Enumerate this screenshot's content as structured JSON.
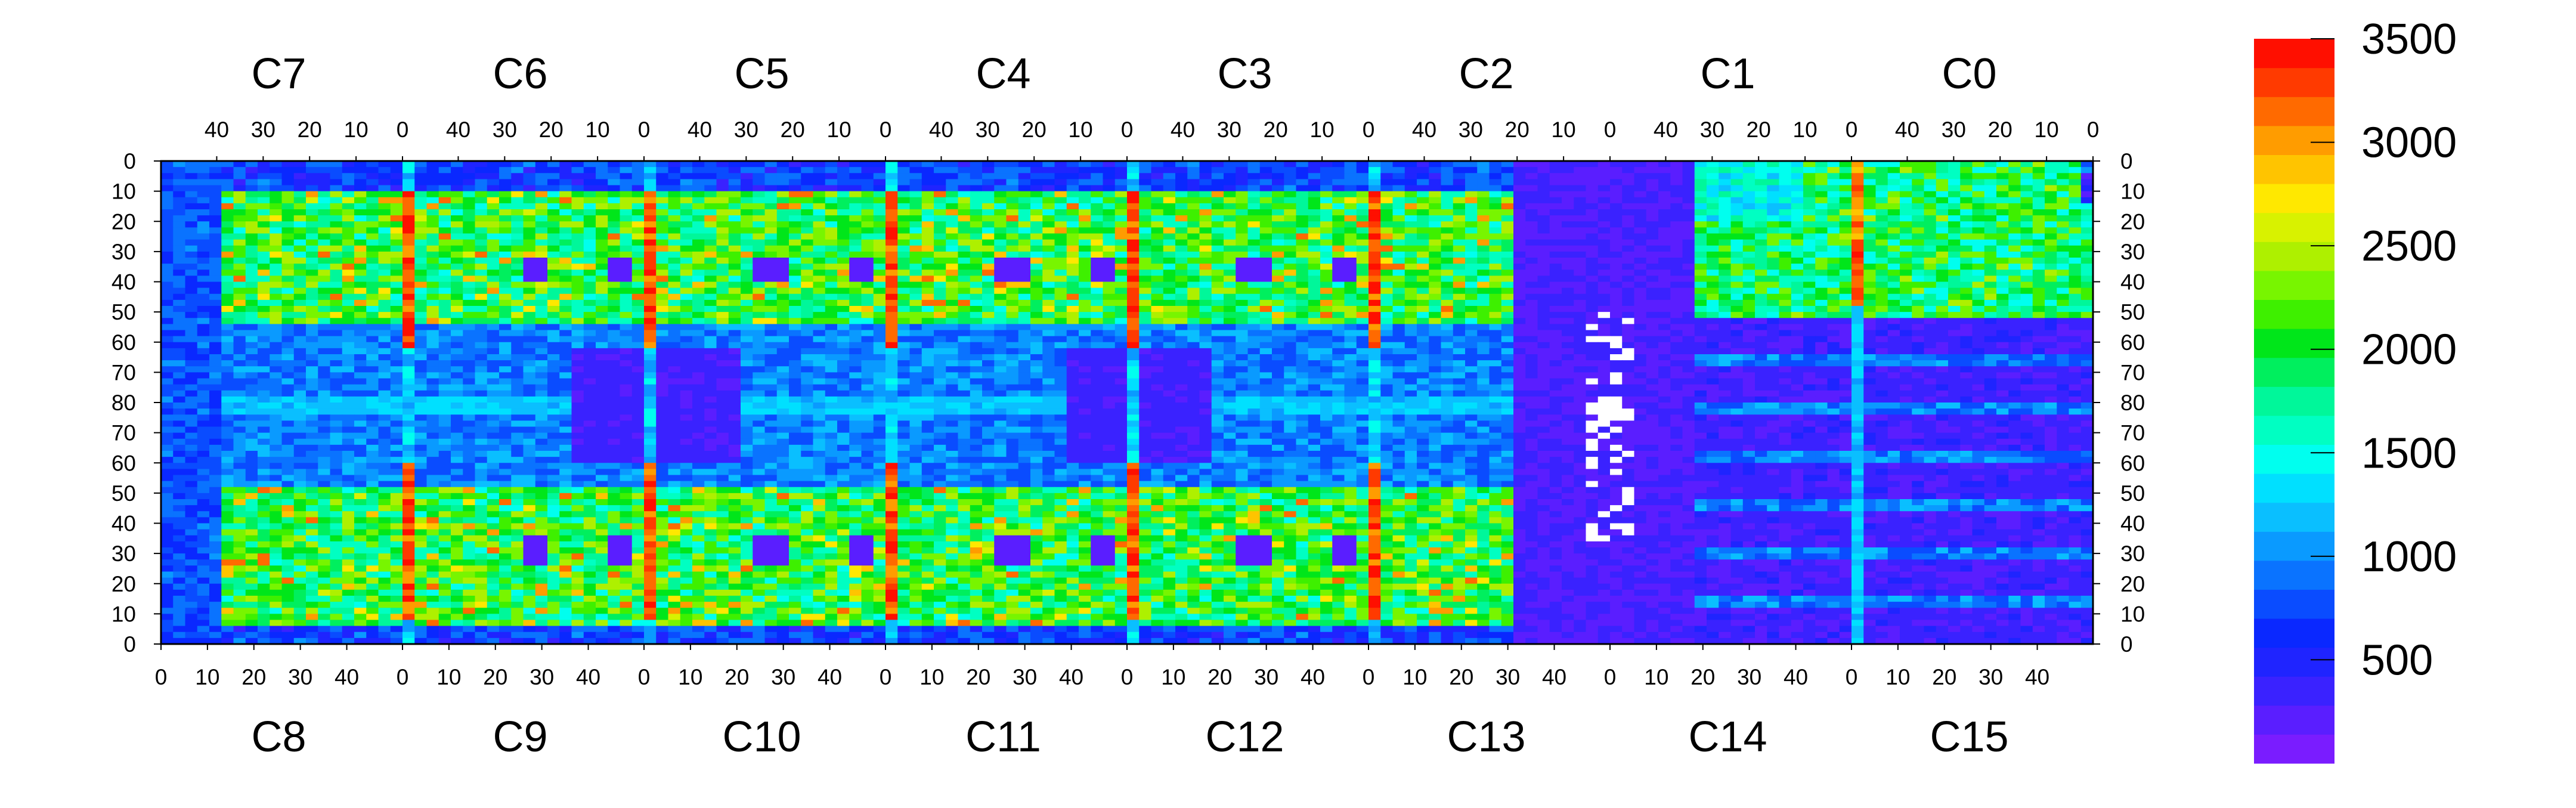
{
  "chart_data": {
    "type": "heatmap",
    "description_note": "",
    "top_chip_labels": [
      "C7",
      "C6",
      "C5",
      "C4",
      "C3",
      "C2",
      "C1",
      "C0"
    ],
    "bottom_chip_labels": [
      "C8",
      "C9",
      "C10",
      "C11",
      "C12",
      "C13",
      "C14",
      "C15"
    ],
    "top_axis_ticks": [
      "40",
      "30",
      "20",
      "10",
      "0"
    ],
    "bottom_axis_ticks": [
      "0",
      "10",
      "20",
      "30",
      "40"
    ],
    "left_axis_ticks": [
      "0",
      "10",
      "20",
      "30",
      "40",
      "50",
      "60",
      "70",
      "80",
      "70",
      "60",
      "50",
      "40",
      "30",
      "20",
      "10",
      "0"
    ],
    "right_axis_ticks": [
      "0",
      "10",
      "20",
      "30",
      "40",
      "50",
      "60",
      "70",
      "80",
      "70",
      "60",
      "50",
      "40",
      "30",
      "20",
      "10",
      "0"
    ],
    "chip_columns": 52,
    "rows_per_half": 80,
    "colorbar": {
      "min": 0,
      "max": 3500,
      "labels": [
        "3500",
        "3000",
        "2500",
        "2000",
        "1500",
        "1000",
        "500"
      ],
      "label_values": [
        3500,
        3000,
        2500,
        2000,
        1500,
        1000,
        500
      ],
      "colors": [
        "#7a1cff",
        "#5a1eff",
        "#3a22ff",
        "#1f24ff",
        "#0a28ff",
        "#0a4cff",
        "#0a73ff",
        "#0a9aff",
        "#0abfff",
        "#00e0ff",
        "#00ffef",
        "#00ffc2",
        "#00f79a",
        "#00ef5e",
        "#00e61a",
        "#3ef000",
        "#78f500",
        "#aef000",
        "#d8f200",
        "#ffe800",
        "#ffc400",
        "#ff9c00",
        "#ff6a00",
        "#ff3a00",
        "#ff0f00"
      ]
    },
    "colors": {
      "background_low": "#6a1cff",
      "typical_active": "#3ef08a",
      "hot_column": "#ff2a00"
    }
  }
}
